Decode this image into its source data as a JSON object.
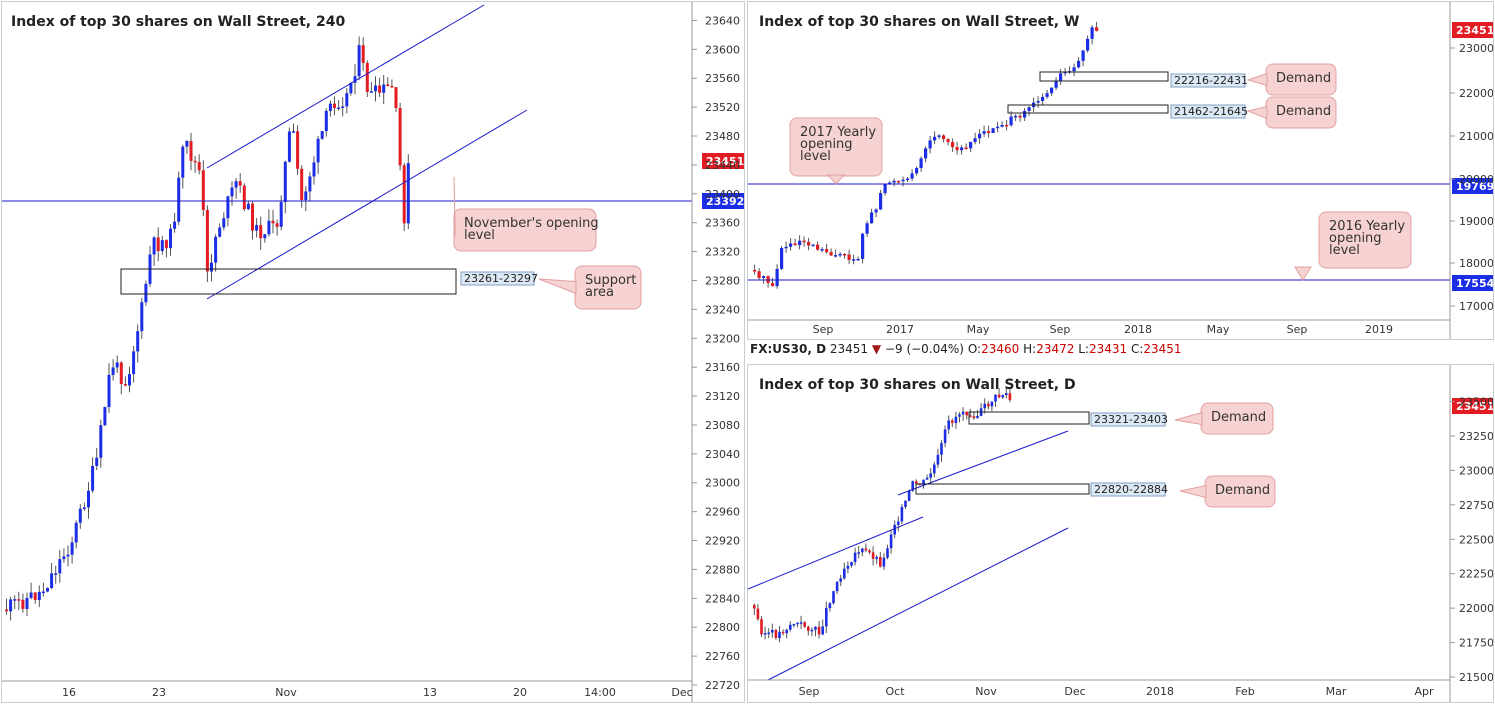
{
  "colors": {
    "bull": "#1b2ee6",
    "bear": "#e31b23",
    "line": "#1a1acc",
    "note_fill": "#f6d2d2",
    "note_stroke": "#e3a0a0",
    "zone_label_fill": "#dde8f5",
    "price_tag": "#e31b23",
    "level_tag": "#1b2ee6"
  },
  "panels": {
    "h4": {
      "title": "Index of top 30 shares on Wall Street, 240",
      "x_labels": [
        "16",
        "23",
        "Nov",
        "13",
        "20",
        "14:00",
        "Dec"
      ],
      "y_labels": [
        "23640",
        "23600",
        "23560",
        "23520",
        "23480",
        "23440",
        "23400",
        "23360",
        "23320",
        "23280",
        "23240",
        "23200",
        "23160",
        "23120",
        "23080",
        "23040",
        "23000",
        "22960",
        "22920",
        "22880",
        "22840",
        "22800",
        "22760",
        "22720"
      ],
      "price_tag": "23451",
      "level_tag": "23392",
      "zone_label": "23261-23297",
      "notes": [
        "November's opening level",
        "Support area"
      ]
    },
    "weekly": {
      "title": "Index of top 30 shares on Wall Street, W",
      "x_labels": [
        "Sep",
        "2017",
        "May",
        "Sep",
        "2018",
        "May",
        "Sep",
        "2019"
      ],
      "y_labels": [
        "23000",
        "22000",
        "21000",
        "20000",
        "19000",
        "18000",
        "17000"
      ],
      "price_tag": "23451",
      "level_tags": [
        "19769",
        "17554"
      ],
      "zone_labels": [
        "22216-22431",
        "21462-21645"
      ],
      "notes": [
        "Demand",
        "Demand",
        "2017 Yearly opening level",
        "2016 Yearly opening level"
      ]
    },
    "daily": {
      "title": "Index of top 30 shares on Wall Street, D",
      "x_labels": [
        "Sep",
        "Oct",
        "Nov",
        "Dec",
        "2018",
        "Feb",
        "Mar",
        "Apr"
      ],
      "y_labels": [
        "23500",
        "23250",
        "23000",
        "22750",
        "22500",
        "22250",
        "22000",
        "21750",
        "21500"
      ],
      "price_tag": "23451",
      "zone_labels": [
        "23321-23403",
        "22820-22884"
      ],
      "notes": [
        "Demand",
        "Demand"
      ]
    }
  },
  "infobar": {
    "symbol": "FX:US30, D",
    "last": "23451",
    "change": "−9 (−0.04%)",
    "o_label": "O:",
    "o": "23460",
    "h_label": "H:",
    "h": "23472",
    "l_label": "L:",
    "l": "23431",
    "c_label": "C:",
    "c": "23451"
  },
  "chart_data": [
    {
      "type": "candlestick",
      "timeframe": "240",
      "title": "Index of top 30 shares on Wall Street, 240",
      "x_ticks": [
        "16",
        "23",
        "Nov",
        "13",
        "20",
        "14:00",
        "Dec"
      ],
      "ylim": [
        22720,
        23660
      ],
      "last_price": 23451,
      "horizontal_levels": [
        {
          "value": 23392,
          "label": "November's opening level"
        }
      ],
      "zones": [
        {
          "range": [
            23261,
            23297
          ],
          "label": "Support area"
        }
      ]
    },
    {
      "type": "candlestick",
      "timeframe": "W",
      "title": "Index of top 30 shares on Wall Street, W",
      "x_ticks": [
        "Sep",
        "2017",
        "May",
        "Sep",
        "2018",
        "May",
        "Sep",
        "2019"
      ],
      "ylim": [
        16700,
        23600
      ],
      "last_price": 23451,
      "horizontal_levels": [
        {
          "value": 19769,
          "label": "2017 Yearly opening level"
        },
        {
          "value": 17554,
          "label": "2016 Yearly opening level"
        }
      ],
      "zones": [
        {
          "range": [
            22216,
            22431
          ],
          "label": "Demand"
        },
        {
          "range": [
            21462,
            21645
          ],
          "label": "Demand"
        }
      ]
    },
    {
      "type": "candlestick",
      "timeframe": "D",
      "title": "Index of top 30 shares on Wall Street, D",
      "x_ticks": [
        "Sep",
        "Oct",
        "Nov",
        "Dec",
        "2018",
        "Feb",
        "Mar",
        "Apr"
      ],
      "ylim": [
        21500,
        23620
      ],
      "last_price": 23451,
      "ohlc_last": {
        "open": 23460,
        "high": 23472,
        "low": 23431,
        "close": 23451
      },
      "zones": [
        {
          "range": [
            23321,
            23403
          ],
          "label": "Demand"
        },
        {
          "range": [
            22820,
            22884
          ],
          "label": "Demand"
        }
      ]
    }
  ]
}
